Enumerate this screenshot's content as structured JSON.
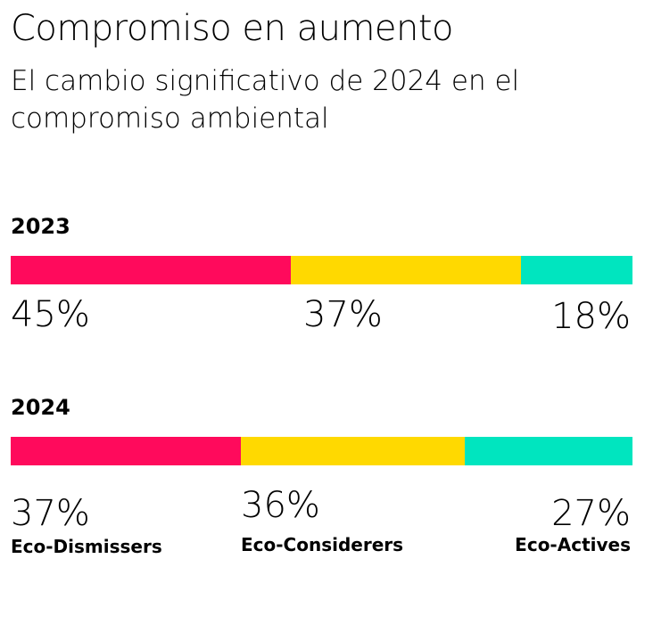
{
  "title": "Compromiso en aumento",
  "subtitle": "El cambio significativo de 2024 en el compromiso ambiental",
  "colors": {
    "eco_dismissers": "#ff0a5c",
    "eco_considerers": "#ffd900",
    "eco_actives": "#00e5bf"
  },
  "chart_data": {
    "type": "bar",
    "stacked": true,
    "orientation": "horizontal",
    "title": "Compromiso en aumento",
    "subtitle": "El cambio significativo de 2024 en el compromiso ambiental",
    "categories": [
      "2023",
      "2024"
    ],
    "series": [
      {
        "name": "Eco-Dismissers",
        "values": [
          45,
          37
        ],
        "labels": [
          "45%",
          "37%"
        ]
      },
      {
        "name": "Eco-Considerers",
        "values": [
          37,
          36
        ],
        "labels": [
          "37%",
          "36%"
        ]
      },
      {
        "name": "Eco-Actives",
        "values": [
          18,
          27
        ],
        "labels": [
          "18%",
          "27%"
        ]
      }
    ]
  }
}
